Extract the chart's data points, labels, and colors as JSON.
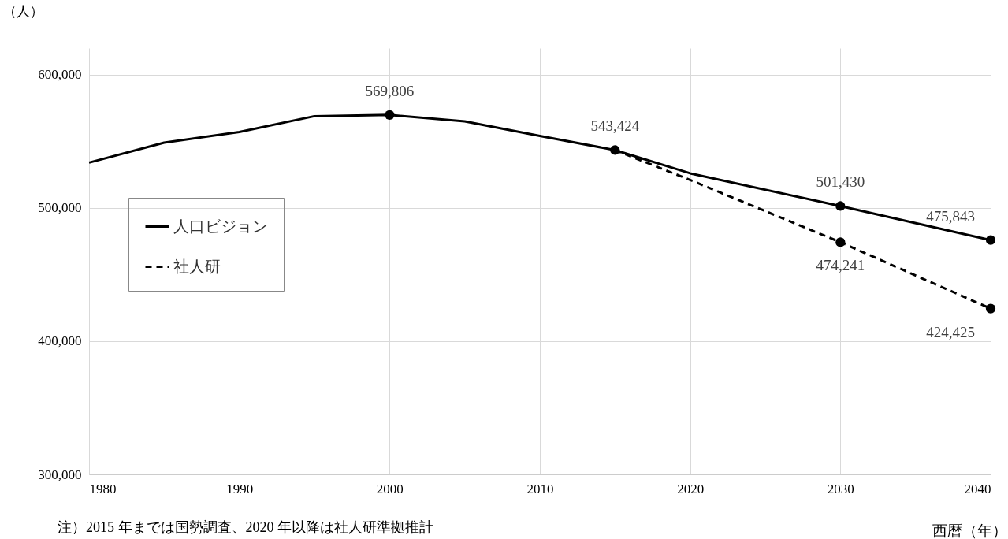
{
  "chart_data": {
    "type": "line",
    "xlabel": "西暦（年）",
    "ylabel": "（人）",
    "x": [
      1980,
      1985,
      1990,
      1995,
      2000,
      2005,
      2010,
      2015,
      2020,
      2030,
      2040
    ],
    "series": [
      {
        "name": "人口ビジョン",
        "color": "#000000",
        "line_style": "solid",
        "values": [
          534000,
          549000,
          557000,
          568900,
          569806,
          565000,
          554000,
          543424,
          526000,
          501430,
          475843
        ]
      },
      {
        "name": "社人研",
        "color": "#000000",
        "line_style": "dashed",
        "x": [
          2015,
          2020,
          2030,
          2040
        ],
        "values": [
          543424,
          521000,
          474241,
          424425
        ]
      },
      {
        "type": "scatter",
        "color": "#000000",
        "marker": "circle",
        "x": [
          2000,
          2015,
          2030,
          2040,
          2030,
          2040
        ],
        "values": [
          569806,
          543424,
          501430,
          475843,
          474241,
          424425
        ],
        "value_labels": [
          "569,806",
          "543,424",
          "501,430",
          "475,843",
          "474,241",
          "424,425"
        ]
      }
    ],
    "xlim": [
      1980,
      2040
    ],
    "xticks": [
      1980,
      1990,
      2000,
      2010,
      2020,
      2030,
      2040
    ],
    "ylim": [
      300000,
      620000
    ],
    "yticks": [
      {
        "value": 300000,
        "label": "300,000"
      },
      {
        "value": 400000,
        "label": "400,000"
      },
      {
        "value": 500000,
        "label": "500,000"
      },
      {
        "value": 600000,
        "label": "600,000"
      }
    ],
    "grid": true,
    "legend": "left",
    "annotations": [
      "注）2015 年までは国勢調査、2020 年以降は社人研準拠推計"
    ]
  }
}
